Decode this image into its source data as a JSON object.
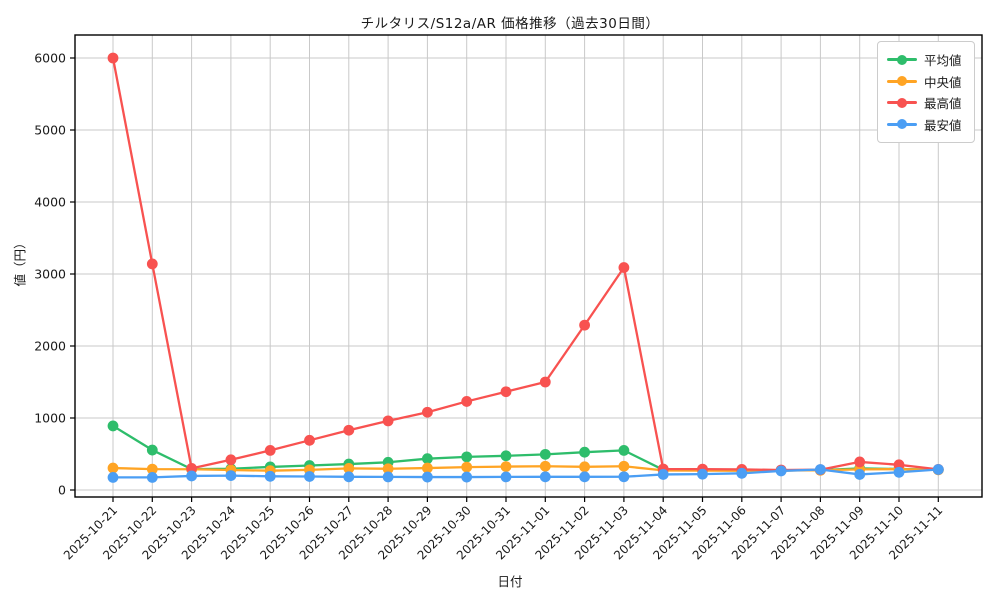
{
  "figure": {
    "background": "#ffffff",
    "text_color": "#1a1a1a",
    "grid_color": "#c9c9c9",
    "spine_color": "#000000"
  },
  "chart_data": {
    "type": "line",
    "title": "チルタリス/S12a/AR 価格推移（過去30日間）",
    "xlabel": "日付",
    "ylabel": "値（円）",
    "ylim": [
      0,
      6000
    ],
    "yticks": [
      0,
      1000,
      2000,
      3000,
      4000,
      5000,
      6000
    ],
    "grid": true,
    "legend_position": "upper right",
    "categories": [
      "2025-10-21",
      "2025-10-22",
      "2025-10-23",
      "2025-10-24",
      "2025-10-25",
      "2025-10-26",
      "2025-10-27",
      "2025-10-28",
      "2025-10-29",
      "2025-10-30",
      "2025-10-31",
      "2025-11-01",
      "2025-11-02",
      "2025-11-03",
      "2025-11-04",
      "2025-11-05",
      "2025-11-06",
      "2025-11-07",
      "2025-11-08",
      "2025-11-09",
      "2025-11-10",
      "2025-11-11"
    ],
    "series": [
      {
        "name": "平均値",
        "color": "#2ebd6b",
        "values": [
          890,
          555,
          290,
          295,
          320,
          340,
          360,
          385,
          435,
          460,
          475,
          495,
          525,
          550,
          280,
          275,
          272,
          272,
          276,
          300,
          292,
          282
        ]
      },
      {
        "name": "中央値",
        "color": "#ffa424",
        "values": [
          305,
          290,
          288,
          278,
          268,
          280,
          300,
          295,
          305,
          318,
          325,
          330,
          322,
          330,
          272,
          270,
          268,
          270,
          274,
          286,
          290,
          280
        ]
      },
      {
        "name": "最高値",
        "color": "#f85250",
        "values": [
          6000,
          3140,
          300,
          420,
          550,
          690,
          830,
          960,
          1080,
          1230,
          1365,
          1500,
          2290,
          3090,
          292,
          290,
          286,
          278,
          282,
          390,
          350,
          286
        ]
      },
      {
        "name": "最安値",
        "color": "#4b9ef4",
        "values": [
          175,
          175,
          195,
          200,
          190,
          188,
          183,
          182,
          180,
          180,
          182,
          183,
          183,
          184,
          216,
          220,
          232,
          265,
          285,
          216,
          246,
          285
        ]
      }
    ]
  }
}
